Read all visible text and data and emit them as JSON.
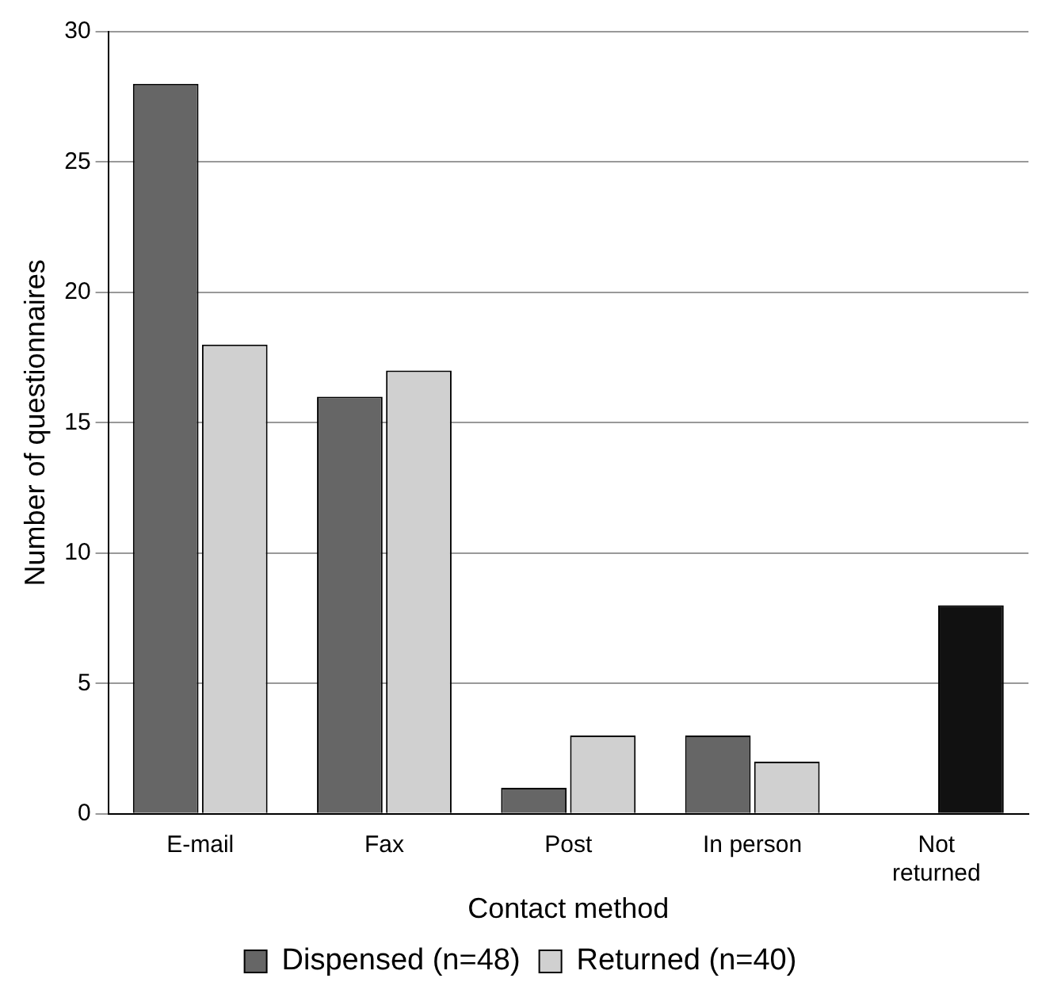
{
  "chart_data": {
    "type": "bar",
    "xlabel": "Contact method",
    "ylabel": "Number of questionnaires",
    "categories": [
      "E-mail",
      "Fax",
      "Post",
      "In person",
      "Not returned"
    ],
    "series": [
      {
        "name": "Dispensed (n=48)",
        "color": "#666666",
        "values": [
          28,
          16,
          1,
          3,
          null
        ]
      },
      {
        "name": "Returned (n=40)",
        "color": "#d0d0d0",
        "colors": [
          "#d0d0d0",
          "#d0d0d0",
          "#d0d0d0",
          "#d0d0d0",
          "#111111"
        ],
        "values": [
          18,
          17,
          3,
          2,
          8
        ]
      }
    ],
    "ylim": [
      0,
      30
    ],
    "yticks": [
      0,
      5,
      10,
      15,
      20,
      25,
      30
    ],
    "grid": "y",
    "legend": "bottom"
  }
}
